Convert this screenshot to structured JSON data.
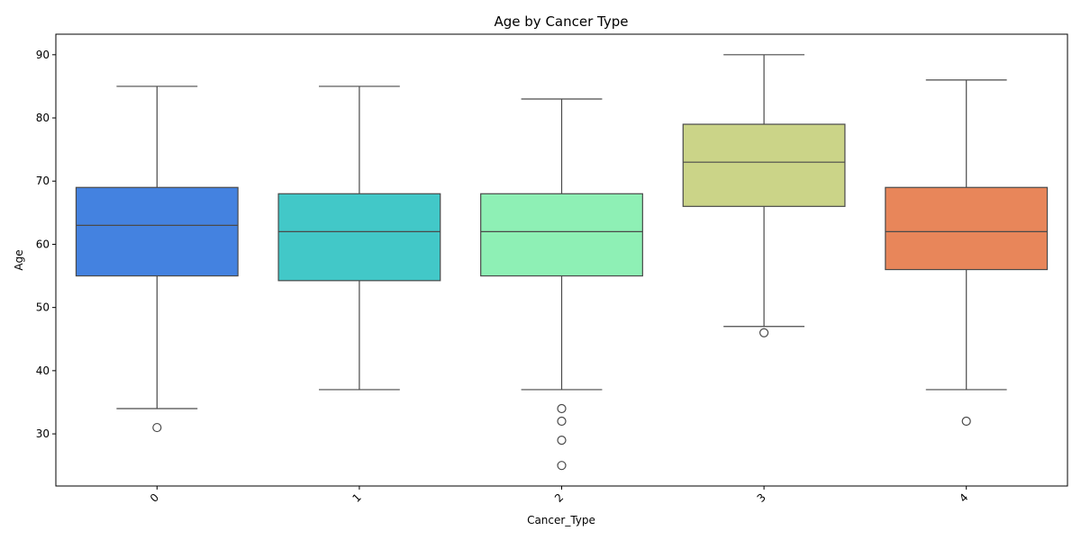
{
  "chart_data": {
    "type": "boxplot",
    "title": "Age by Cancer Type",
    "xlabel": "Cancer_Type",
    "ylabel": "Age",
    "ylim": [
      21.75,
      93.25
    ],
    "yticks": [
      30,
      40,
      50,
      60,
      70,
      80,
      90
    ],
    "ytick_labels": [
      "30",
      "40",
      "50",
      "60",
      "70",
      "80",
      "90"
    ],
    "categories": [
      "0",
      "1",
      "2",
      "3",
      "4"
    ],
    "boxes": [
      {
        "category": "0",
        "whisker_low": 34,
        "q1": 55,
        "median": 63,
        "q3": 69,
        "whisker_high": 85,
        "outliers": [
          31
        ],
        "color": "#4482e0"
      },
      {
        "category": "1",
        "whisker_low": 37,
        "q1": 54.25,
        "median": 62,
        "q3": 68,
        "whisker_high": 85,
        "outliers": [],
        "color": "#42c8c8"
      },
      {
        "category": "2",
        "whisker_low": 37,
        "q1": 55,
        "median": 62,
        "q3": 68,
        "whisker_high": 83,
        "outliers": [
          34,
          32,
          29,
          25
        ],
        "color": "#8ef0b5"
      },
      {
        "category": "3",
        "whisker_low": 47,
        "q1": 66,
        "median": 73,
        "q3": 79,
        "whisker_high": 90,
        "outliers": [
          46
        ],
        "color": "#cbd488"
      },
      {
        "category": "4",
        "whisker_low": 37,
        "q1": 56,
        "median": 62,
        "q3": 69,
        "whisker_high": 86,
        "outliers": [
          32
        ],
        "color": "#e8865a"
      }
    ],
    "grid": false
  }
}
